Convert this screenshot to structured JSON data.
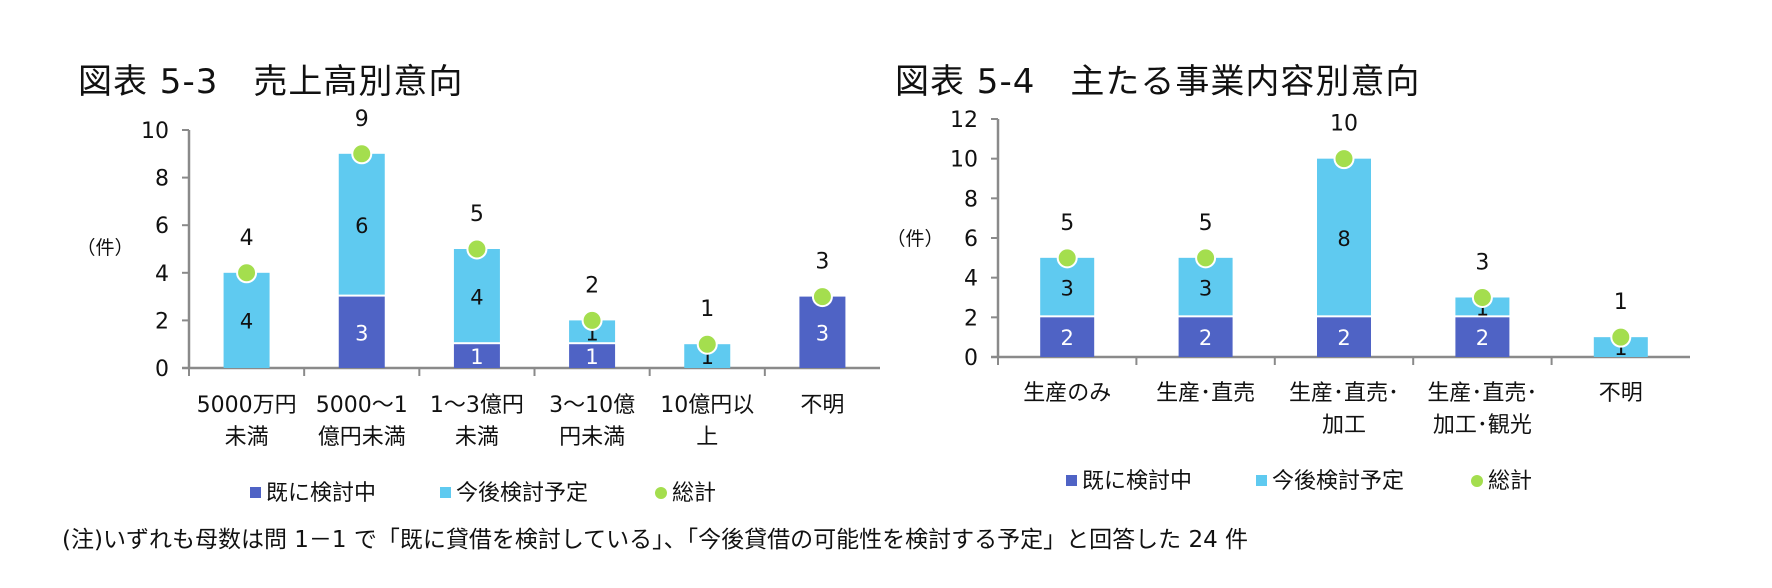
{
  "colors": {
    "already": "#4F63C5",
    "future": "#5FCAF0",
    "total": "#A4DE4E",
    "axis": "#8A8A8A",
    "text": "#111111",
    "label_on_dark": "#ffffff"
  },
  "legend": {
    "already": "既に検討中",
    "future": "今後検討予定",
    "total": "総計"
  },
  "footnote": "(注)いずれも母数は問 1－1 で「既に貸借を検討している」、「今後貸借の可能性を検討する予定」と回答した 24 件",
  "chart_data": [
    {
      "type": "bar",
      "stacked": true,
      "title": "図表 5-3　売上高別意向",
      "ylabel": "（件）",
      "xlabel": "",
      "ylim": [
        0,
        10
      ],
      "yticks": [
        0,
        2,
        4,
        6,
        8,
        10
      ],
      "grid": false,
      "legend_position": "bottom",
      "categories": [
        "5000万円未満",
        "5000～1億円未満",
        "1～3億円未満",
        "3～10億円未満",
        "10億円以上",
        "不明"
      ],
      "category_lines": [
        [
          "5000万円",
          "未満"
        ],
        [
          "5000～1",
          "億円未満"
        ],
        [
          "1～3億円",
          "未満"
        ],
        [
          "3～10億",
          "円未満"
        ],
        [
          "10億円以",
          "上"
        ],
        [
          "不明"
        ]
      ],
      "series": [
        {
          "name": "既に検討中",
          "values": [
            0,
            3,
            1,
            1,
            0,
            3
          ]
        },
        {
          "name": "今後検討予定",
          "values": [
            4,
            6,
            4,
            1,
            1,
            0
          ]
        },
        {
          "name": "総計",
          "values": [
            4,
            9,
            5,
            2,
            1,
            3
          ],
          "kind": "marker"
        }
      ]
    },
    {
      "type": "bar",
      "stacked": true,
      "title": "図表 5-4　主たる事業内容別意向",
      "ylabel": "（件）",
      "xlabel": "",
      "ylim": [
        0,
        12
      ],
      "yticks": [
        0,
        2,
        4,
        6,
        8,
        10,
        12
      ],
      "grid": false,
      "legend_position": "bottom",
      "categories": [
        "生産のみ",
        "生産・直売",
        "生産・直売・加工",
        "生産・直売・加工・観光",
        "不明"
      ],
      "category_lines": [
        [
          "生産のみ"
        ],
        [
          "生産･直売"
        ],
        [
          "生産･直売･",
          "加工"
        ],
        [
          "生産･直売･",
          "加工･観光"
        ],
        [
          "不明"
        ]
      ],
      "series": [
        {
          "name": "既に検討中",
          "values": [
            2,
            2,
            2,
            2,
            0
          ]
        },
        {
          "name": "今後検討予定",
          "values": [
            3,
            3,
            8,
            1,
            1
          ]
        },
        {
          "name": "総計",
          "values": [
            5,
            5,
            10,
            3,
            1
          ],
          "kind": "marker"
        }
      ]
    }
  ]
}
